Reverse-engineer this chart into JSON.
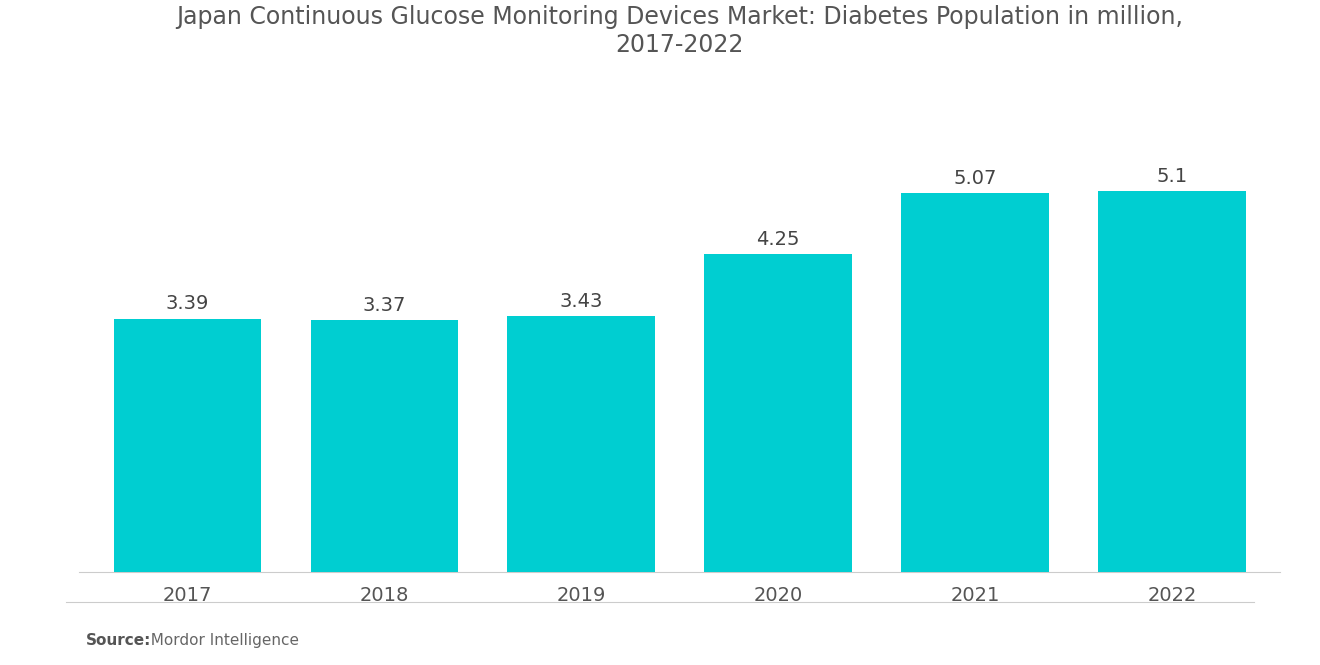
{
  "title": "Japan Continuous Glucose Monitoring Devices Market: Diabetes Population in million,\n2017-2022",
  "categories": [
    "2017",
    "2018",
    "2019",
    "2020",
    "2021",
    "2022"
  ],
  "values": [
    3.39,
    3.37,
    3.43,
    4.25,
    5.07,
    5.1
  ],
  "bar_color": "#00CED1",
  "background_color": "#ffffff",
  "title_fontsize": 17,
  "label_fontsize": 14,
  "tick_fontsize": 14,
  "source_bold": "Source:",
  "source_text": "  Mordor Intelligence",
  "ylim": [
    0,
    6.5
  ],
  "bar_width": 0.75,
  "title_color": "#555555",
  "tick_color": "#555555",
  "label_color": "#444444"
}
